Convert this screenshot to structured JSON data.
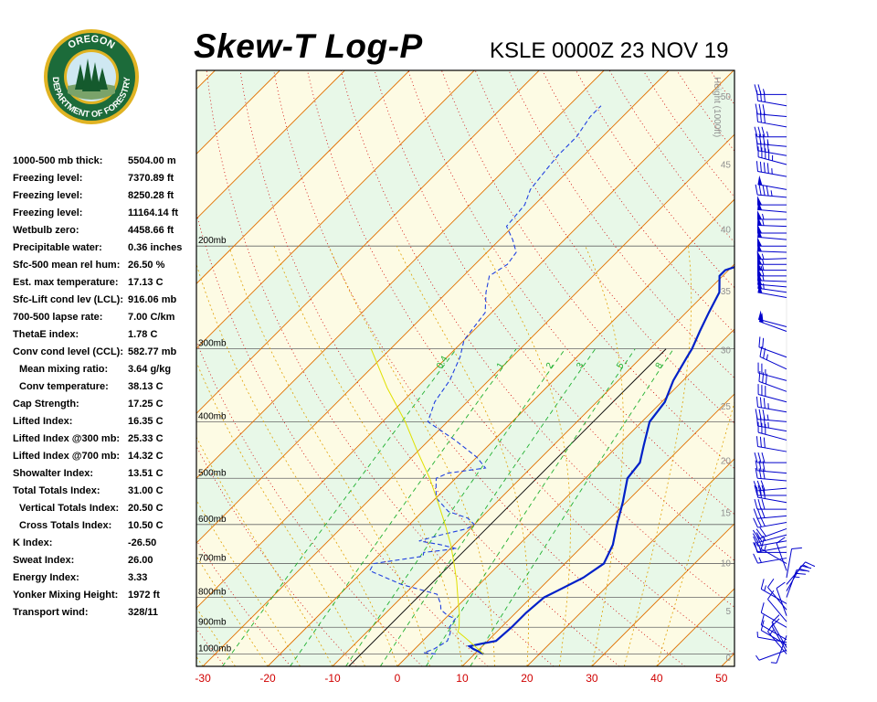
{
  "header": {
    "title": "Skew-T Log-P",
    "station_time": "KSLE 0000Z 23 NOV 19"
  },
  "logo": {
    "top_text": "OREGON",
    "bottom_text": "DEPARTMENT OF FORESTRY",
    "colors": {
      "ring": "#1c6b3a",
      "gold": "#e0b323",
      "sky": "#cfe8f2",
      "tree": "#155a2d"
    }
  },
  "indices": [
    {
      "label": "1000-500 mb thick:",
      "value": "5504.00 m",
      "indent": false
    },
    {
      "label": "Freezing level:",
      "value": "7370.89 ft",
      "indent": false
    },
    {
      "label": "Freezing level:",
      "value": "8250.28 ft",
      "indent": false
    },
    {
      "label": "Freezing level:",
      "value": "11164.14 ft",
      "indent": false
    },
    {
      "label": "Wetbulb zero:",
      "value": "4458.66 ft",
      "indent": false
    },
    {
      "label": "Precipitable water:",
      "value": "0.36 inches",
      "indent": false
    },
    {
      "label": "Sfc-500 mean rel hum:",
      "value": "26.50 %",
      "indent": false
    },
    {
      "label": "Est. max temperature:",
      "value": "17.13 C",
      "indent": false
    },
    {
      "label": "Sfc-Lift cond lev (LCL):",
      "value": "916.06 mb",
      "indent": false
    },
    {
      "label": "700-500 lapse rate:",
      "value": "7.00 C/km",
      "indent": false
    },
    {
      "label": "ThetaE index:",
      "value": "1.78 C",
      "indent": false
    },
    {
      "label": "Conv cond level (CCL):",
      "value": "582.77 mb",
      "indent": false
    },
    {
      "label": "Mean mixing ratio:",
      "value": "3.64 g/kg",
      "indent": true
    },
    {
      "label": "Conv temperature:",
      "value": "38.13 C",
      "indent": true
    },
    {
      "label": "Cap Strength:",
      "value": "17.25 C",
      "indent": false
    },
    {
      "label": "Lifted Index:",
      "value": "16.35 C",
      "indent": false
    },
    {
      "label": "Lifted Index @300 mb:",
      "value": "25.33 C",
      "indent": false
    },
    {
      "label": "Lifted Index @700 mb:",
      "value": "14.32 C",
      "indent": false
    },
    {
      "label": "Showalter Index:",
      "value": "13.51 C",
      "indent": false
    },
    {
      "label": "Total Totals Index:",
      "value": "31.00 C",
      "indent": false
    },
    {
      "label": "Vertical Totals Index:",
      "value": "20.50 C",
      "indent": true
    },
    {
      "label": "Cross Totals Index:",
      "value": "10.50 C",
      "indent": true
    },
    {
      "label": "K Index:",
      "value": "-26.50",
      "indent": false
    },
    {
      "label": "Sweat Index:",
      "value": "26.00",
      "indent": false
    },
    {
      "label": "Energy Index:",
      "value": "3.33",
      "indent": false
    },
    {
      "label": "Yonker Mixing Height:",
      "value": "1972 ft",
      "indent": false
    },
    {
      "label": "Transport wind:",
      "value": "328/11",
      "indent": false
    }
  ],
  "chart_data": {
    "type": "line",
    "xlim": [
      -31,
      52
    ],
    "ylim_mb": [
      1050,
      100
    ],
    "x_ticks": [
      -30,
      -20,
      -10,
      0,
      10,
      20,
      30,
      40,
      50
    ],
    "x_tick_labels": [
      "-30",
      "-20",
      "-10",
      "0",
      "10",
      "20",
      "30",
      "40",
      "50"
    ],
    "pressure_levels": [
      1000,
      900,
      800,
      700,
      600,
      500,
      400,
      300,
      200
    ],
    "pressure_labels": [
      "1000mb",
      "900mb",
      "800mb",
      "700mb",
      "600mb",
      "500mb",
      "400mb",
      "300mb",
      "200mb"
    ],
    "height_axis_label": "Height (1000ft)",
    "height_ticks_kft": [
      0,
      5,
      10,
      15,
      20,
      25,
      30,
      35,
      40,
      45,
      50
    ],
    "height_tick_labels": [
      "0",
      "5",
      "10",
      "15",
      "20",
      "25",
      "30",
      "35",
      "40",
      "45",
      "50"
    ],
    "mixing_ratio_labels": [
      "0.4",
      "1",
      "2",
      "3",
      "5",
      "8"
    ],
    "mixing_ratio_values": [
      0.4,
      1,
      2,
      3,
      5,
      8
    ],
    "colors": {
      "temperature": "#0020c8",
      "dewpoint": "#2040e0",
      "parcel": "#e0e000",
      "isotherm": "#e07000",
      "dry_adiabat": "#d00000",
      "moist_adiabat": "#e0a000",
      "mixing_ratio": "#20b030",
      "band_yellow": "#fdfbe4",
      "band_green": "#e8f8e8",
      "x_tick_label": "#d00000"
    },
    "series": [
      {
        "name": "",
        "role": "temperature",
        "points": [
          [
            1000,
            11.4
          ],
          [
            980,
            9.0
          ],
          [
            970,
            8.0
          ],
          [
            960,
            9.5
          ],
          [
            950,
            11.3
          ],
          [
            900,
            11.6
          ],
          [
            850,
            11.6
          ],
          [
            800,
            12.0
          ],
          [
            780,
            13.0
          ],
          [
            740,
            15.0
          ],
          [
            700,
            16.0
          ],
          [
            650,
            14.5
          ],
          [
            600,
            12.0
          ],
          [
            550,
            9.5
          ],
          [
            500,
            6.5
          ],
          [
            470,
            6.0
          ],
          [
            440,
            4.0
          ],
          [
            400,
            1.2
          ],
          [
            370,
            0.5
          ],
          [
            340,
            -1.5
          ],
          [
            310,
            -3.0
          ],
          [
            300,
            -3.5
          ],
          [
            280,
            -5.0
          ],
          [
            260,
            -6.5
          ],
          [
            240,
            -8.0
          ],
          [
            225,
            -10.5
          ],
          [
            220,
            -10.5
          ],
          [
            210,
            -7.0
          ],
          [
            200,
            -7.0
          ],
          [
            190,
            -7.5
          ],
          [
            180,
            -9.0
          ],
          [
            170,
            -10.0
          ],
          [
            165,
            -10.5
          ],
          [
            160,
            -10.0
          ],
          [
            150,
            -9.5
          ],
          [
            145,
            -10.5
          ],
          [
            140,
            -9.8
          ],
          [
            135,
            -10.0
          ],
          [
            130,
            -11.5
          ],
          [
            125,
            -12.0
          ],
          [
            115,
            -12.5
          ]
        ]
      },
      {
        "name": "",
        "role": "dewpoint",
        "points": [
          [
            1000,
            4.0
          ],
          [
            995,
            2.0
          ],
          [
            980,
            3.0
          ],
          [
            950,
            3.8
          ],
          [
            920,
            3.0
          ],
          [
            900,
            2.0
          ],
          [
            870,
            1.6
          ],
          [
            860,
            0.0
          ],
          [
            840,
            -2.0
          ],
          [
            820,
            -3.0
          ],
          [
            790,
            -5.0
          ],
          [
            760,
            -12.0
          ],
          [
            720,
            -19.0
          ],
          [
            700,
            -19.5
          ],
          [
            680,
            -13.0
          ],
          [
            670,
            -13.5
          ],
          [
            660,
            -9.0
          ],
          [
            650,
            -12.0
          ],
          [
            640,
            -16.0
          ],
          [
            625,
            -13.5
          ],
          [
            610,
            -10.5
          ],
          [
            600,
            -10.0
          ],
          [
            585,
            -12.0
          ],
          [
            570,
            -16.0
          ],
          [
            540,
            -20.0
          ],
          [
            520,
            -21.5
          ],
          [
            500,
            -23.0
          ],
          [
            490,
            -22.0
          ],
          [
            480,
            -17.0
          ],
          [
            460,
            -20.0
          ],
          [
            430,
            -26.0
          ],
          [
            400,
            -33.0
          ],
          [
            370,
            -35.0
          ],
          [
            340,
            -36.0
          ],
          [
            310,
            -38.0
          ],
          [
            290,
            -40.0
          ],
          [
            260,
            -41.0
          ],
          [
            240,
            -44.0
          ],
          [
            225,
            -46.0
          ],
          [
            215,
            -45.0
          ],
          [
            205,
            -45.5
          ],
          [
            195,
            -48.0
          ],
          [
            185,
            -51.0
          ],
          [
            170,
            -51.5
          ],
          [
            160,
            -53.0
          ],
          [
            150,
            -53.5
          ],
          [
            140,
            -54.0
          ],
          [
            130,
            -54.0
          ],
          [
            120,
            -55.0
          ],
          [
            115,
            -55.0
          ]
        ]
      },
      {
        "name": "",
        "role": "parcel",
        "points": [
          [
            1000,
            11.4
          ],
          [
            960,
            8.0
          ],
          [
            935,
            5.8
          ],
          [
            916,
            4.0
          ],
          [
            900,
            3.5
          ],
          [
            850,
            1.3
          ],
          [
            800,
            -1.3
          ],
          [
            750,
            -4.0
          ],
          [
            700,
            -7.1
          ],
          [
            650,
            -10.5
          ],
          [
            600,
            -14.5
          ],
          [
            550,
            -19.0
          ],
          [
            500,
            -24.0
          ],
          [
            450,
            -30.0
          ],
          [
            400,
            -36.5
          ],
          [
            350,
            -44.5
          ],
          [
            300,
            -53.0
          ]
        ]
      }
    ],
    "wind_barbs": [
      {
        "p": 1000,
        "dir": 320,
        "kt": 15
      },
      {
        "p": 990,
        "dir": 330,
        "kt": 10
      },
      {
        "p": 985,
        "dir": 250,
        "kt": 8
      },
      {
        "p": 975,
        "dir": 330,
        "kt": 10
      },
      {
        "p": 965,
        "dir": 300,
        "kt": 12
      },
      {
        "p": 955,
        "dir": 280,
        "kt": 8
      },
      {
        "p": 945,
        "dir": 300,
        "kt": 10
      },
      {
        "p": 930,
        "dir": 200,
        "kt": 8
      },
      {
        "p": 900,
        "dir": 300,
        "kt": 12
      },
      {
        "p": 880,
        "dir": 320,
        "kt": 10
      },
      {
        "p": 860,
        "dir": 340,
        "kt": 10
      },
      {
        "p": 840,
        "dir": 320,
        "kt": 12
      },
      {
        "p": 820,
        "dir": 300,
        "kt": 15
      },
      {
        "p": 800,
        "dir": 20,
        "kt": 25
      },
      {
        "p": 780,
        "dir": 30,
        "kt": 20
      },
      {
        "p": 760,
        "dir": 40,
        "kt": 15
      },
      {
        "p": 740,
        "dir": 10,
        "kt": 10
      },
      {
        "p": 720,
        "dir": 340,
        "kt": 10
      },
      {
        "p": 700,
        "dir": 300,
        "kt": 15
      },
      {
        "p": 685,
        "dir": 260,
        "kt": 15
      },
      {
        "p": 670,
        "dir": 270,
        "kt": 15
      },
      {
        "p": 655,
        "dir": 260,
        "kt": 20
      },
      {
        "p": 640,
        "dir": 260,
        "kt": 20
      },
      {
        "p": 625,
        "dir": 255,
        "kt": 25
      },
      {
        "p": 610,
        "dir": 250,
        "kt": 30
      },
      {
        "p": 595,
        "dir": 260,
        "kt": 30
      },
      {
        "p": 580,
        "dir": 265,
        "kt": 30
      },
      {
        "p": 565,
        "dir": 270,
        "kt": 30
      },
      {
        "p": 550,
        "dir": 280,
        "kt": 30
      },
      {
        "p": 535,
        "dir": 270,
        "kt": 30
      },
      {
        "p": 520,
        "dir": 265,
        "kt": 30
      },
      {
        "p": 505,
        "dir": 275,
        "kt": 30
      },
      {
        "p": 490,
        "dir": 275,
        "kt": 30
      },
      {
        "p": 470,
        "dir": 270,
        "kt": 30
      },
      {
        "p": 450,
        "dir": 280,
        "kt": 30
      },
      {
        "p": 430,
        "dir": 285,
        "kt": 30
      },
      {
        "p": 415,
        "dir": 280,
        "kt": 35
      },
      {
        "p": 400,
        "dir": 275,
        "kt": 35
      },
      {
        "p": 385,
        "dir": 280,
        "kt": 35
      },
      {
        "p": 370,
        "dir": 285,
        "kt": 30
      },
      {
        "p": 355,
        "dir": 290,
        "kt": 30
      },
      {
        "p": 340,
        "dir": 285,
        "kt": 25
      },
      {
        "p": 325,
        "dir": 295,
        "kt": 25
      },
      {
        "p": 310,
        "dir": 290,
        "kt": 20
      },
      {
        "p": 280,
        "dir": 290,
        "kt": 50
      },
      {
        "p": 275,
        "dir": 285,
        "kt": 50
      },
      {
        "p": 245,
        "dir": 280,
        "kt": 50
      },
      {
        "p": 240,
        "dir": 278,
        "kt": 55
      },
      {
        "p": 235,
        "dir": 275,
        "kt": 50
      },
      {
        "p": 230,
        "dir": 272,
        "kt": 55
      },
      {
        "p": 225,
        "dir": 270,
        "kt": 60
      },
      {
        "p": 220,
        "dir": 270,
        "kt": 55
      },
      {
        "p": 215,
        "dir": 270,
        "kt": 55
      },
      {
        "p": 210,
        "dir": 268,
        "kt": 55
      },
      {
        "p": 205,
        "dir": 272,
        "kt": 50
      },
      {
        "p": 200,
        "dir": 270,
        "kt": 50
      },
      {
        "p": 195,
        "dir": 275,
        "kt": 50
      },
      {
        "p": 190,
        "dir": 270,
        "kt": 50
      },
      {
        "p": 185,
        "dir": 272,
        "kt": 55
      },
      {
        "p": 180,
        "dir": 270,
        "kt": 55
      },
      {
        "p": 175,
        "dir": 275,
        "kt": 50
      },
      {
        "p": 170,
        "dir": 270,
        "kt": 50
      },
      {
        "p": 165,
        "dir": 275,
        "kt": 45
      },
      {
        "p": 160,
        "dir": 280,
        "kt": 50
      },
      {
        "p": 152,
        "dir": 280,
        "kt": 45
      },
      {
        "p": 145,
        "dir": 285,
        "kt": 45
      },
      {
        "p": 140,
        "dir": 280,
        "kt": 40
      },
      {
        "p": 135,
        "dir": 275,
        "kt": 35
      },
      {
        "p": 130,
        "dir": 270,
        "kt": 35
      },
      {
        "p": 125,
        "dir": 280,
        "kt": 30
      },
      {
        "p": 120,
        "dir": 275,
        "kt": 30
      },
      {
        "p": 115,
        "dir": 280,
        "kt": 30
      },
      {
        "p": 110,
        "dir": 270,
        "kt": 25
      }
    ]
  }
}
